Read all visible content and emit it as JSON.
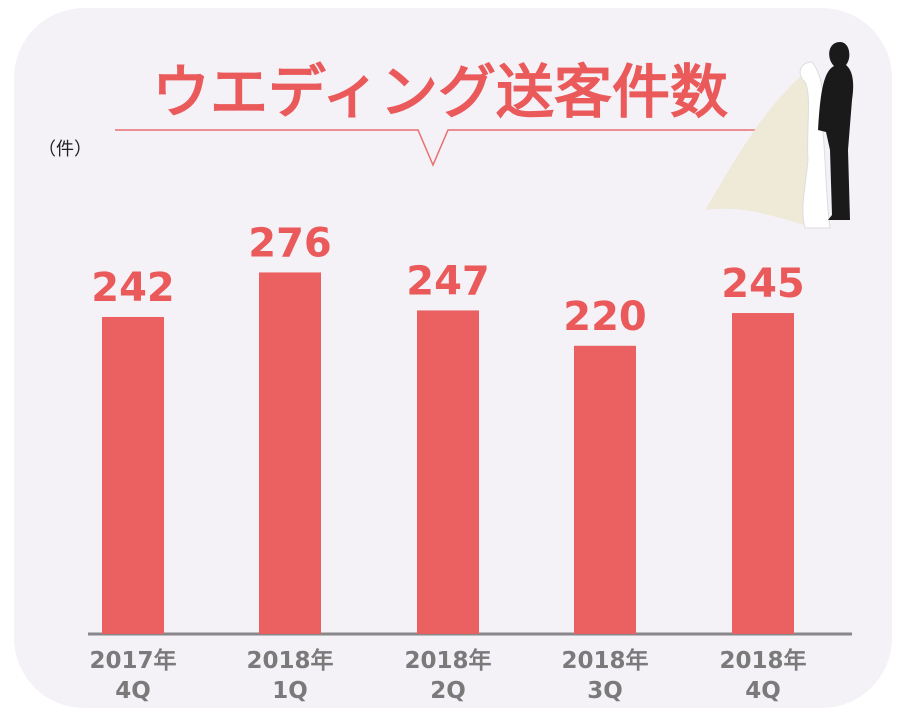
{
  "chart_data": {
    "type": "bar",
    "title": "ウエディング送客件数",
    "unit_label": "（件）",
    "categories": [
      "2017年\n4Q",
      "2018年\n1Q",
      "2018年\n2Q",
      "2018年\n3Q",
      "2018年\n4Q"
    ],
    "values": [
      242,
      276,
      247,
      220,
      245
    ],
    "color": "#eb6060",
    "ylim": [
      0,
      300
    ]
  }
}
